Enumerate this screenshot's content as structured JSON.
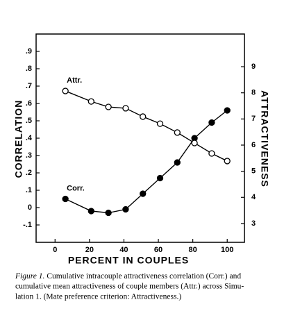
{
  "chart_data": {
    "type": "line",
    "xlabel": "PERCENT IN COUPLES",
    "ylabel": "CORRELATION",
    "y2label": "ATTRACTIVENESS",
    "x": [
      6,
      21,
      31,
      41,
      51,
      61,
      71,
      81,
      91,
      100
    ],
    "series": [
      {
        "name": "Corr.",
        "color": "#000000",
        "marker": "filled-circle",
        "values": [
          0.05,
          -0.02,
          -0.03,
          -0.01,
          0.08,
          0.17,
          0.26,
          0.4,
          0.49,
          0.56
        ]
      },
      {
        "name": "Attr.",
        "color": "#000000",
        "marker": "open-circle",
        "axis": "y2",
        "values": [
          8.07,
          7.67,
          7.46,
          7.41,
          7.09,
          6.82,
          6.48,
          6.08,
          5.68,
          5.39
        ]
      }
    ],
    "xlim": [
      -11,
      110
    ],
    "xticks": [
      0,
      20,
      40,
      60,
      80,
      100
    ],
    "ylim": [
      -0.2,
      1.0
    ],
    "yticks": [
      {
        "value": -0.1,
        "label": "-.1"
      },
      0,
      {
        "value": 0.1,
        "label": ".1"
      },
      {
        "value": 0.2,
        "label": ".2"
      },
      {
        "value": 0.3,
        "label": ".3"
      },
      {
        "value": 0.4,
        "label": ".4"
      },
      {
        "value": 0.5,
        "label": ".5"
      },
      {
        "value": 0.6,
        "label": ".6"
      },
      {
        "value": 0.7,
        "label": ".7"
      },
      {
        "value": 0.8,
        "label": ".8"
      },
      {
        "value": 0.9,
        "label": ".9"
      }
    ],
    "y2lim": [
      2.28,
      10.25
    ],
    "y2ticks": [
      3,
      4,
      5,
      6,
      7,
      8,
      9
    ],
    "grid": false,
    "caption": {
      "label": "Figure 1.",
      "lines": [
        "Cumulative intracouple attractiveness correlation (Corr.) and",
        "cumulative mean attractiveness of couple members (Attr.) across Simu-",
        "lation 1. (Mate preference criterion: Attractiveness.)"
      ]
    }
  }
}
